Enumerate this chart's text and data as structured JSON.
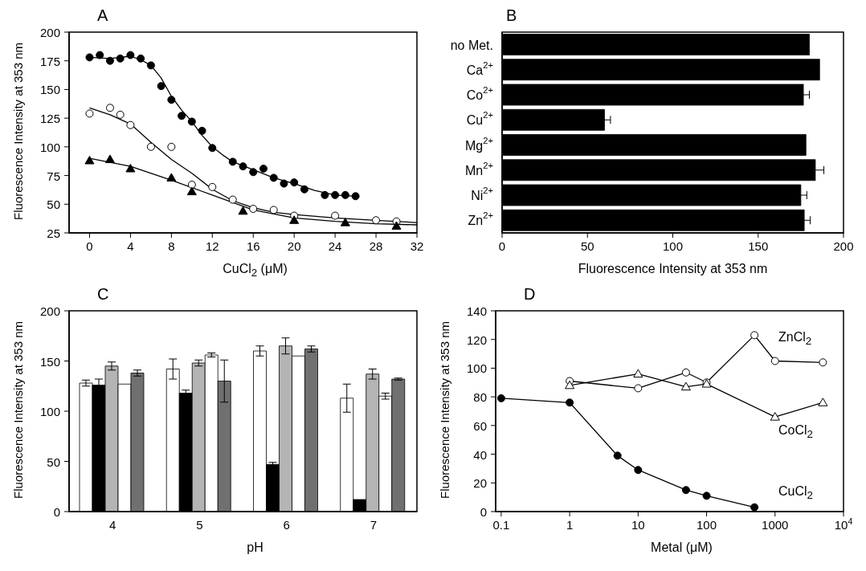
{
  "chart_data": [
    {
      "type": "scatter",
      "title": "A",
      "xlabel": "CuCl$_{2}$ (μM)",
      "ylabel": "Fluorescence Intensity at 353 nm",
      "xlim": [
        -2,
        32
      ],
      "xticks": [
        0,
        4,
        8,
        12,
        16,
        20,
        24,
        28,
        32
      ],
      "ylim": [
        25,
        200
      ],
      "yticks": [
        25,
        50,
        75,
        100,
        125,
        150,
        175,
        200
      ],
      "series": [
        {
          "type": "scatter",
          "marker": "circle",
          "color": "#000000",
          "x": [
            0,
            1,
            2,
            3,
            4,
            5,
            6,
            7,
            8,
            9,
            10,
            11,
            12,
            14,
            15,
            16,
            17,
            18,
            19,
            20,
            21,
            23,
            24,
            25,
            26
          ],
          "values": [
            178,
            180,
            175,
            177,
            180,
            177,
            171,
            153,
            141,
            127,
            122,
            114,
            99,
            87,
            83,
            78,
            81,
            73,
            68,
            69,
            63,
            58,
            58,
            58,
            57
          ]
        },
        {
          "type": "scatter",
          "marker": "circle",
          "color": "#ffffff",
          "x": [
            0,
            2,
            3,
            4,
            6,
            8,
            10,
            12,
            14,
            16,
            18,
            20,
            24,
            28,
            30
          ],
          "values": [
            129,
            134,
            128,
            119,
            100,
            100,
            67,
            65,
            54,
            46,
            45,
            40,
            40,
            36,
            35
          ]
        },
        {
          "type": "scatter",
          "marker": "triangle",
          "color": "#000000",
          "x": [
            0,
            2,
            4,
            8,
            10,
            15,
            20,
            25,
            30
          ],
          "values": [
            88,
            89,
            81,
            73,
            61,
            44,
            36,
            34,
            31
          ]
        },
        {
          "type": "line",
          "marker": "none",
          "color": "#000000",
          "x": [
            0,
            2,
            4,
            5,
            6,
            7,
            8,
            9,
            10,
            11,
            12,
            13,
            14,
            16,
            18,
            20,
            22,
            24,
            26
          ],
          "values": [
            178,
            177,
            179,
            176,
            171,
            160,
            144,
            132,
            122,
            110,
            100,
            93,
            87,
            80,
            73,
            68,
            62,
            58,
            57
          ]
        },
        {
          "type": "line",
          "marker": "none",
          "color": "#000000",
          "x": [
            0,
            2,
            4,
            6,
            8,
            10,
            12,
            14,
            16,
            18,
            20,
            24,
            28,
            32
          ],
          "values": [
            134,
            128,
            120,
            104,
            89,
            77,
            63,
            53,
            47,
            43,
            41,
            38,
            36,
            34
          ]
        },
        {
          "type": "line",
          "marker": "none",
          "color": "#000000",
          "x": [
            0,
            4,
            8,
            12,
            16,
            20,
            24,
            28,
            32
          ],
          "values": [
            90,
            83,
            71,
            58,
            45,
            38,
            35,
            33,
            32
          ]
        }
      ]
    },
    {
      "type": "bar",
      "orientation": "horizontal",
      "title": "B",
      "xlabel": "Fluorescence Intensity at 353 nm",
      "categories": [
        "no Met.",
        "Ca$^{2+}$",
        "Co$^{2+}$",
        "Cu$^{2+}$",
        "Mg$^{2+}$",
        "Mn$^{2+}$",
        "Ni$^{2+}$",
        "Zn$^{2+}$"
      ],
      "values": [
        180,
        186,
        176.5,
        60,
        178,
        183.5,
        175,
        177
      ],
      "errors": [
        null,
        null,
        3.5,
        3.5,
        null,
        5,
        3.5,
        3.5
      ],
      "color": "#000000",
      "xlim": [
        0,
        200
      ],
      "xticks": [
        0,
        50,
        100,
        150,
        200
      ]
    },
    {
      "type": "bar",
      "title": "C",
      "xlabel": "pH",
      "ylabel": "Fluorescence Intensity at 353 nm",
      "categories": [
        "4",
        "5",
        "6",
        "7"
      ],
      "ylim": [
        0,
        200
      ],
      "yticks": [
        0,
        50,
        100,
        150,
        200
      ],
      "series": [
        {
          "color": "#ffffff",
          "values": [
            128,
            142,
            160,
            113
          ],
          "errors": [
            3,
            10,
            5,
            14
          ]
        },
        {
          "color": "#000000",
          "values": [
            126,
            118,
            47,
            12
          ],
          "errors": [
            6,
            3,
            2,
            null
          ]
        },
        {
          "color": "#b4b4b4",
          "values": [
            145,
            148,
            165,
            137
          ],
          "errors": [
            4,
            3,
            8,
            5
          ]
        },
        {
          "color": "#ffffff",
          "values": [
            127,
            156,
            155,
            115
          ],
          "errors": [
            null,
            2,
            null,
            3
          ]
        },
        {
          "color": "#707070",
          "values": [
            138,
            130,
            162,
            132
          ],
          "errors": [
            3,
            21,
            3,
            1
          ]
        }
      ]
    },
    {
      "type": "line",
      "log": "x",
      "title": "D",
      "xlabel": "Metal (μM)",
      "ylabel": "Fluorescence Intensity at 353 nm",
      "xlim": [
        0.083,
        10000
      ],
      "xticks": [
        0.1,
        1,
        10,
        100,
        1000,
        {
          "value": 10000,
          "label": "10$^{4}$"
        }
      ],
      "ylim": [
        0,
        140
      ],
      "yticks": [
        0,
        20,
        40,
        60,
        80,
        100,
        120,
        140
      ],
      "annotations": [
        "ZnCl$_{2}$",
        "CoCl$_{2}$",
        "CuCl$_{2}$"
      ],
      "series": [
        {
          "type": "line",
          "marker": "none",
          "color": "#000000",
          "x": [
            1,
            10,
            50,
            100,
            500,
            1000,
            5000
          ],
          "values": [
            91,
            86,
            97,
            90,
            123,
            105,
            104
          ]
        },
        {
          "type": "line",
          "marker": "none",
          "color": "#000000",
          "x": [
            1,
            10,
            50,
            100,
            1000,
            5000
          ],
          "values": [
            88,
            96,
            87,
            89,
            66,
            76
          ]
        },
        {
          "type": "line",
          "marker": "none",
          "color": "#000000",
          "x": [
            0.1,
            1,
            5,
            10,
            50,
            100,
            500
          ],
          "values": [
            79,
            76,
            39,
            29,
            15,
            11,
            3
          ]
        },
        {
          "type": "scatter",
          "marker": "circle",
          "color": "#ffffff",
          "x": [
            1,
            10,
            50,
            100,
            500,
            1000,
            5000
          ],
          "values": [
            91,
            86,
            97,
            90,
            123,
            105,
            104
          ]
        },
        {
          "type": "scatter",
          "marker": "triangle",
          "color": "#ffffff",
          "x": [
            1,
            10,
            50,
            100,
            1000,
            5000
          ],
          "values": [
            88,
            96,
            87,
            89,
            66,
            76
          ]
        },
        {
          "type": "scatter",
          "marker": "circle",
          "color": "#000000",
          "x": [
            0.1,
            1,
            5,
            10,
            50,
            100,
            500
          ],
          "values": [
            79,
            76,
            39,
            29,
            15,
            11,
            3
          ]
        }
      ]
    }
  ]
}
